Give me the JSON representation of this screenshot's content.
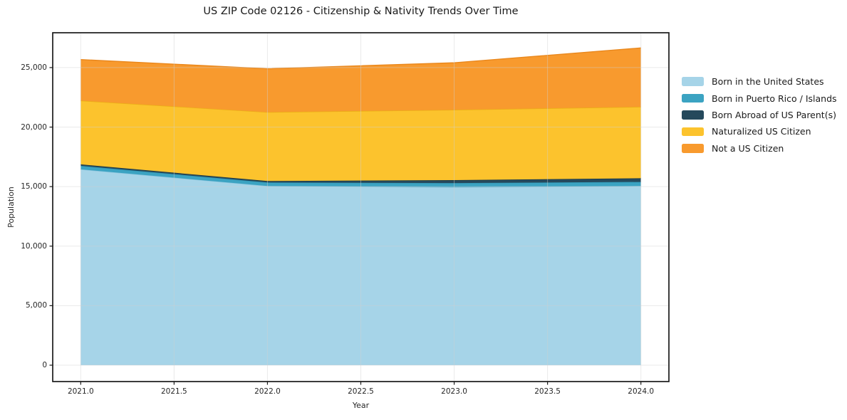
{
  "chart_data": {
    "type": "area",
    "stacked": true,
    "title": "US ZIP Code 02126 - Citizenship & Nativity Trends Over Time",
    "xlabel": "Year",
    "ylabel": "Population",
    "x": [
      2021,
      2022,
      2023,
      2024
    ],
    "series": [
      {
        "name": "Born in the United States",
        "color": "#A6D4E8",
        "edge": "#8CC5DE",
        "values": [
          16450,
          15050,
          14950,
          15050
        ]
      },
      {
        "name": "Born in Puerto Rico / Islands",
        "color": "#3BA3C2",
        "edge": "#2F90AD",
        "values": [
          300,
          300,
          350,
          350
        ]
      },
      {
        "name": "Born Abroad of US Parent(s)",
        "color": "#25495C",
        "edge": "#1B3A4A",
        "values": [
          120,
          120,
          250,
          300
        ]
      },
      {
        "name": "Naturalized US Citizen",
        "color": "#FCC32D",
        "edge": "#EAAF15",
        "values": [
          5350,
          5780,
          5900,
          6000
        ]
      },
      {
        "name": "Not a US Citizen",
        "color": "#F89A2E",
        "edge": "#E9871C",
        "values": [
          3450,
          3650,
          3950,
          4950
        ]
      }
    ],
    "x_ticks": [
      2021.0,
      2021.5,
      2022.0,
      2022.5,
      2023.0,
      2023.5,
      2024.0
    ],
    "x_tick_labels": [
      "2021.0",
      "2021.5",
      "2022.0",
      "2022.5",
      "2023.0",
      "2023.5",
      "2024.0"
    ],
    "y_ticks": [
      0,
      5000,
      10000,
      15000,
      20000,
      25000
    ],
    "y_tick_labels": [
      "0",
      "5,000",
      "10,000",
      "15,000",
      "20,000",
      "25,000"
    ],
    "xlim": [
      2020.85,
      2024.15
    ],
    "ylim": [
      -1375,
      27925
    ],
    "grid": true,
    "legend_position": "outside-right",
    "axis_color": "#1a1a1a",
    "grid_color": "#d0d0d0"
  }
}
